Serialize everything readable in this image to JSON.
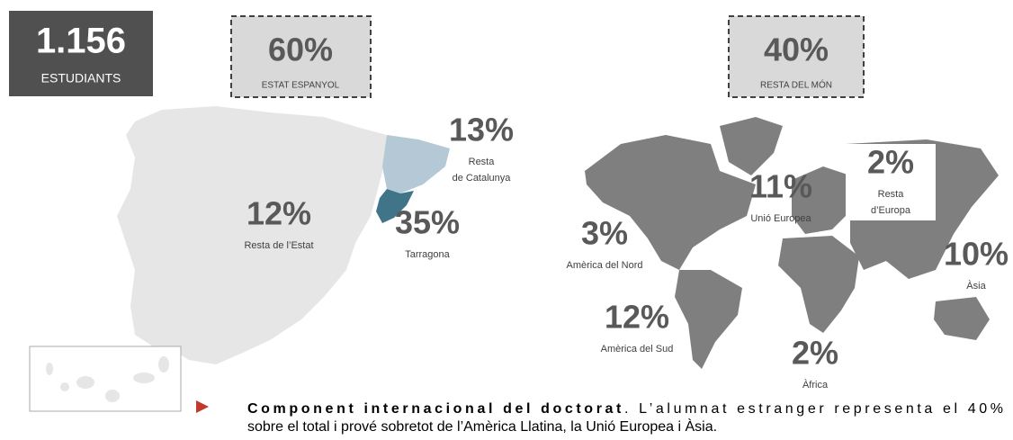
{
  "header": {
    "total": {
      "value": "1.156",
      "label": "ESTUDIANTS"
    },
    "spain": {
      "value": "60%",
      "label": "ESTAT ESPANYOL"
    },
    "world": {
      "value": "40%",
      "label": "RESTA DEL MÓN"
    }
  },
  "regions": [
    {
      "value": "12%",
      "label": [
        "Resta de l’Estat"
      ]
    },
    {
      "value": "13%",
      "label": [
        "Resta",
        "de Catalunya"
      ]
    },
    {
      "value": "35%",
      "label": [
        "Tarragona"
      ]
    },
    {
      "value": "11%",
      "label": [
        "Unió Europea"
      ]
    },
    {
      "value": "2%",
      "label": [
        "Resta",
        "d’Europa"
      ]
    },
    {
      "value": "3%",
      "label": [
        "Amèrica del Nord"
      ]
    },
    {
      "value": "10%",
      "label": [
        "Àsia"
      ]
    },
    {
      "value": "12%",
      "label": [
        "Amèrica del Sud"
      ]
    },
    {
      "value": "2%",
      "label": [
        "Àfrica"
      ]
    }
  ],
  "footer": {
    "bold": "Component internacional del doctorat",
    "line1": ". L’alumnat estranger representa el 40%",
    "line2": "sobre el total i prové sobretot de l’Amèrica Llatina, la Unió Europea i Àsia."
  }
}
